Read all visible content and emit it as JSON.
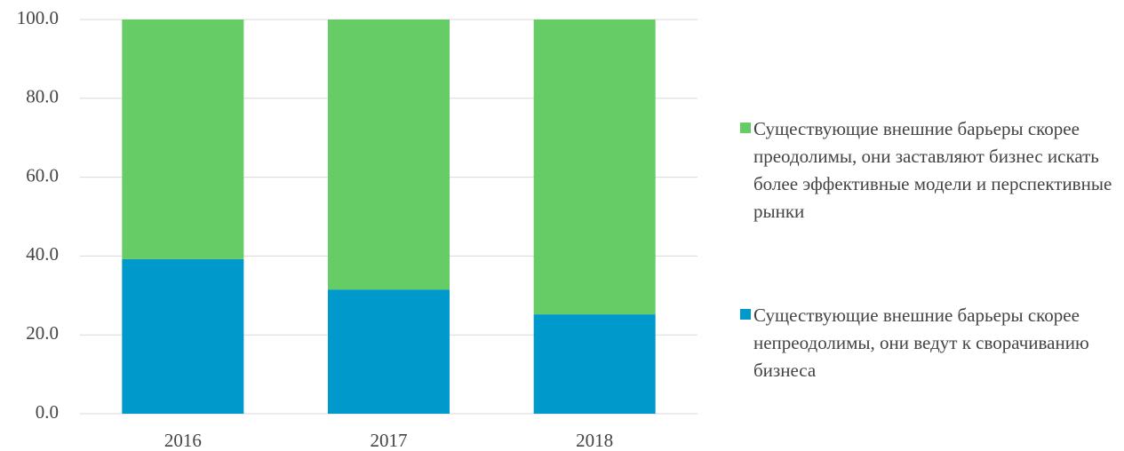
{
  "chart_data": {
    "type": "stacked_bar",
    "categories": [
      "2016",
      "2017",
      "2018"
    ],
    "series": [
      {
        "name": "Существующие внешние барьеры скорее непреодолимы, они ведут к сворачиванию бизнеса",
        "color": "#0099cc",
        "values": [
          39.2,
          31.5,
          25.2
        ]
      },
      {
        "name": "Существующие внешние барьеры скорее преодолимы, они заставляют бизнес искать более эффективные модели и перспективные рынки",
        "color": "#66cc66",
        "values": [
          60.8,
          68.5,
          74.8
        ]
      }
    ],
    "ylim": [
      0,
      100
    ],
    "yticks": [
      {
        "value": 0,
        "label": "0.0"
      },
      {
        "value": 20,
        "label": "20.0"
      },
      {
        "value": 40,
        "label": "40.0"
      },
      {
        "value": 60,
        "label": "60.0"
      },
      {
        "value": 80,
        "label": "80.0"
      },
      {
        "value": 100,
        "label": "100.0"
      }
    ],
    "grid": true,
    "legend": "right"
  }
}
